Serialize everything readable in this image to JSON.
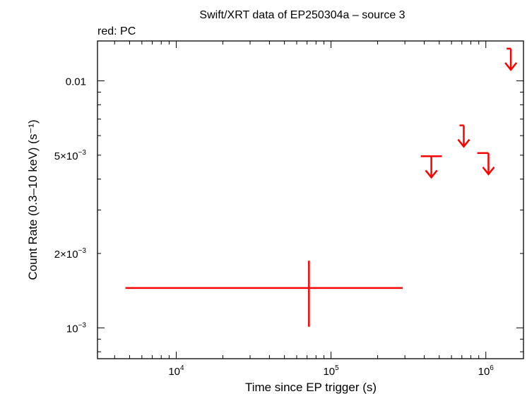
{
  "chart_data": {
    "type": "scatter",
    "title": "Swift/XRT data of EP250304a – source 3",
    "subtitle": "red: PC",
    "xlabel": "Time since EP trigger (s)",
    "ylabel": "Count Rate (0.3–10 keV) (s⁻¹)",
    "x_scale": "log",
    "y_scale": "log",
    "xlim": [
      3100,
      1750000
    ],
    "ylim": [
      0.00075,
      0.0145
    ],
    "x_ticks": [
      {
        "value": 10000,
        "base": "10",
        "exp": "4"
      },
      {
        "value": 100000,
        "base": "10",
        "exp": "5"
      },
      {
        "value": 1000000,
        "base": "10",
        "exp": "6"
      }
    ],
    "y_ticks": [
      {
        "value": 0.001,
        "base": "10",
        "exp": "−3"
      },
      {
        "value": 0.002,
        "base": "2×10",
        "exp": "−3"
      },
      {
        "value": 0.005,
        "base": "5×10",
        "exp": "−3"
      },
      {
        "value": 0.01,
        "label": "0.01"
      }
    ],
    "grid": false,
    "series": [
      {
        "color": "#ff0000",
        "detections": [
          {
            "x": 72000,
            "x_lo": 4700,
            "x_hi": 290000,
            "y": 0.00145,
            "y_lo": 0.00101,
            "y_hi": 0.00187
          }
        ],
        "upper_limits": [
          {
            "x": 520000,
            "x_lo": 380000,
            "x_hi": 520000,
            "y": 0.00495
          },
          {
            "x": 720000,
            "x_lo": 680000,
            "x_hi": 720000,
            "y": 0.0066
          },
          {
            "x": 1040000,
            "x_lo": 880000,
            "x_hi": 1040000,
            "y": 0.0051
          },
          {
            "x": 1450000,
            "x_lo": 1400000,
            "x_hi": 1450000,
            "y": 0.0135
          }
        ]
      }
    ]
  }
}
